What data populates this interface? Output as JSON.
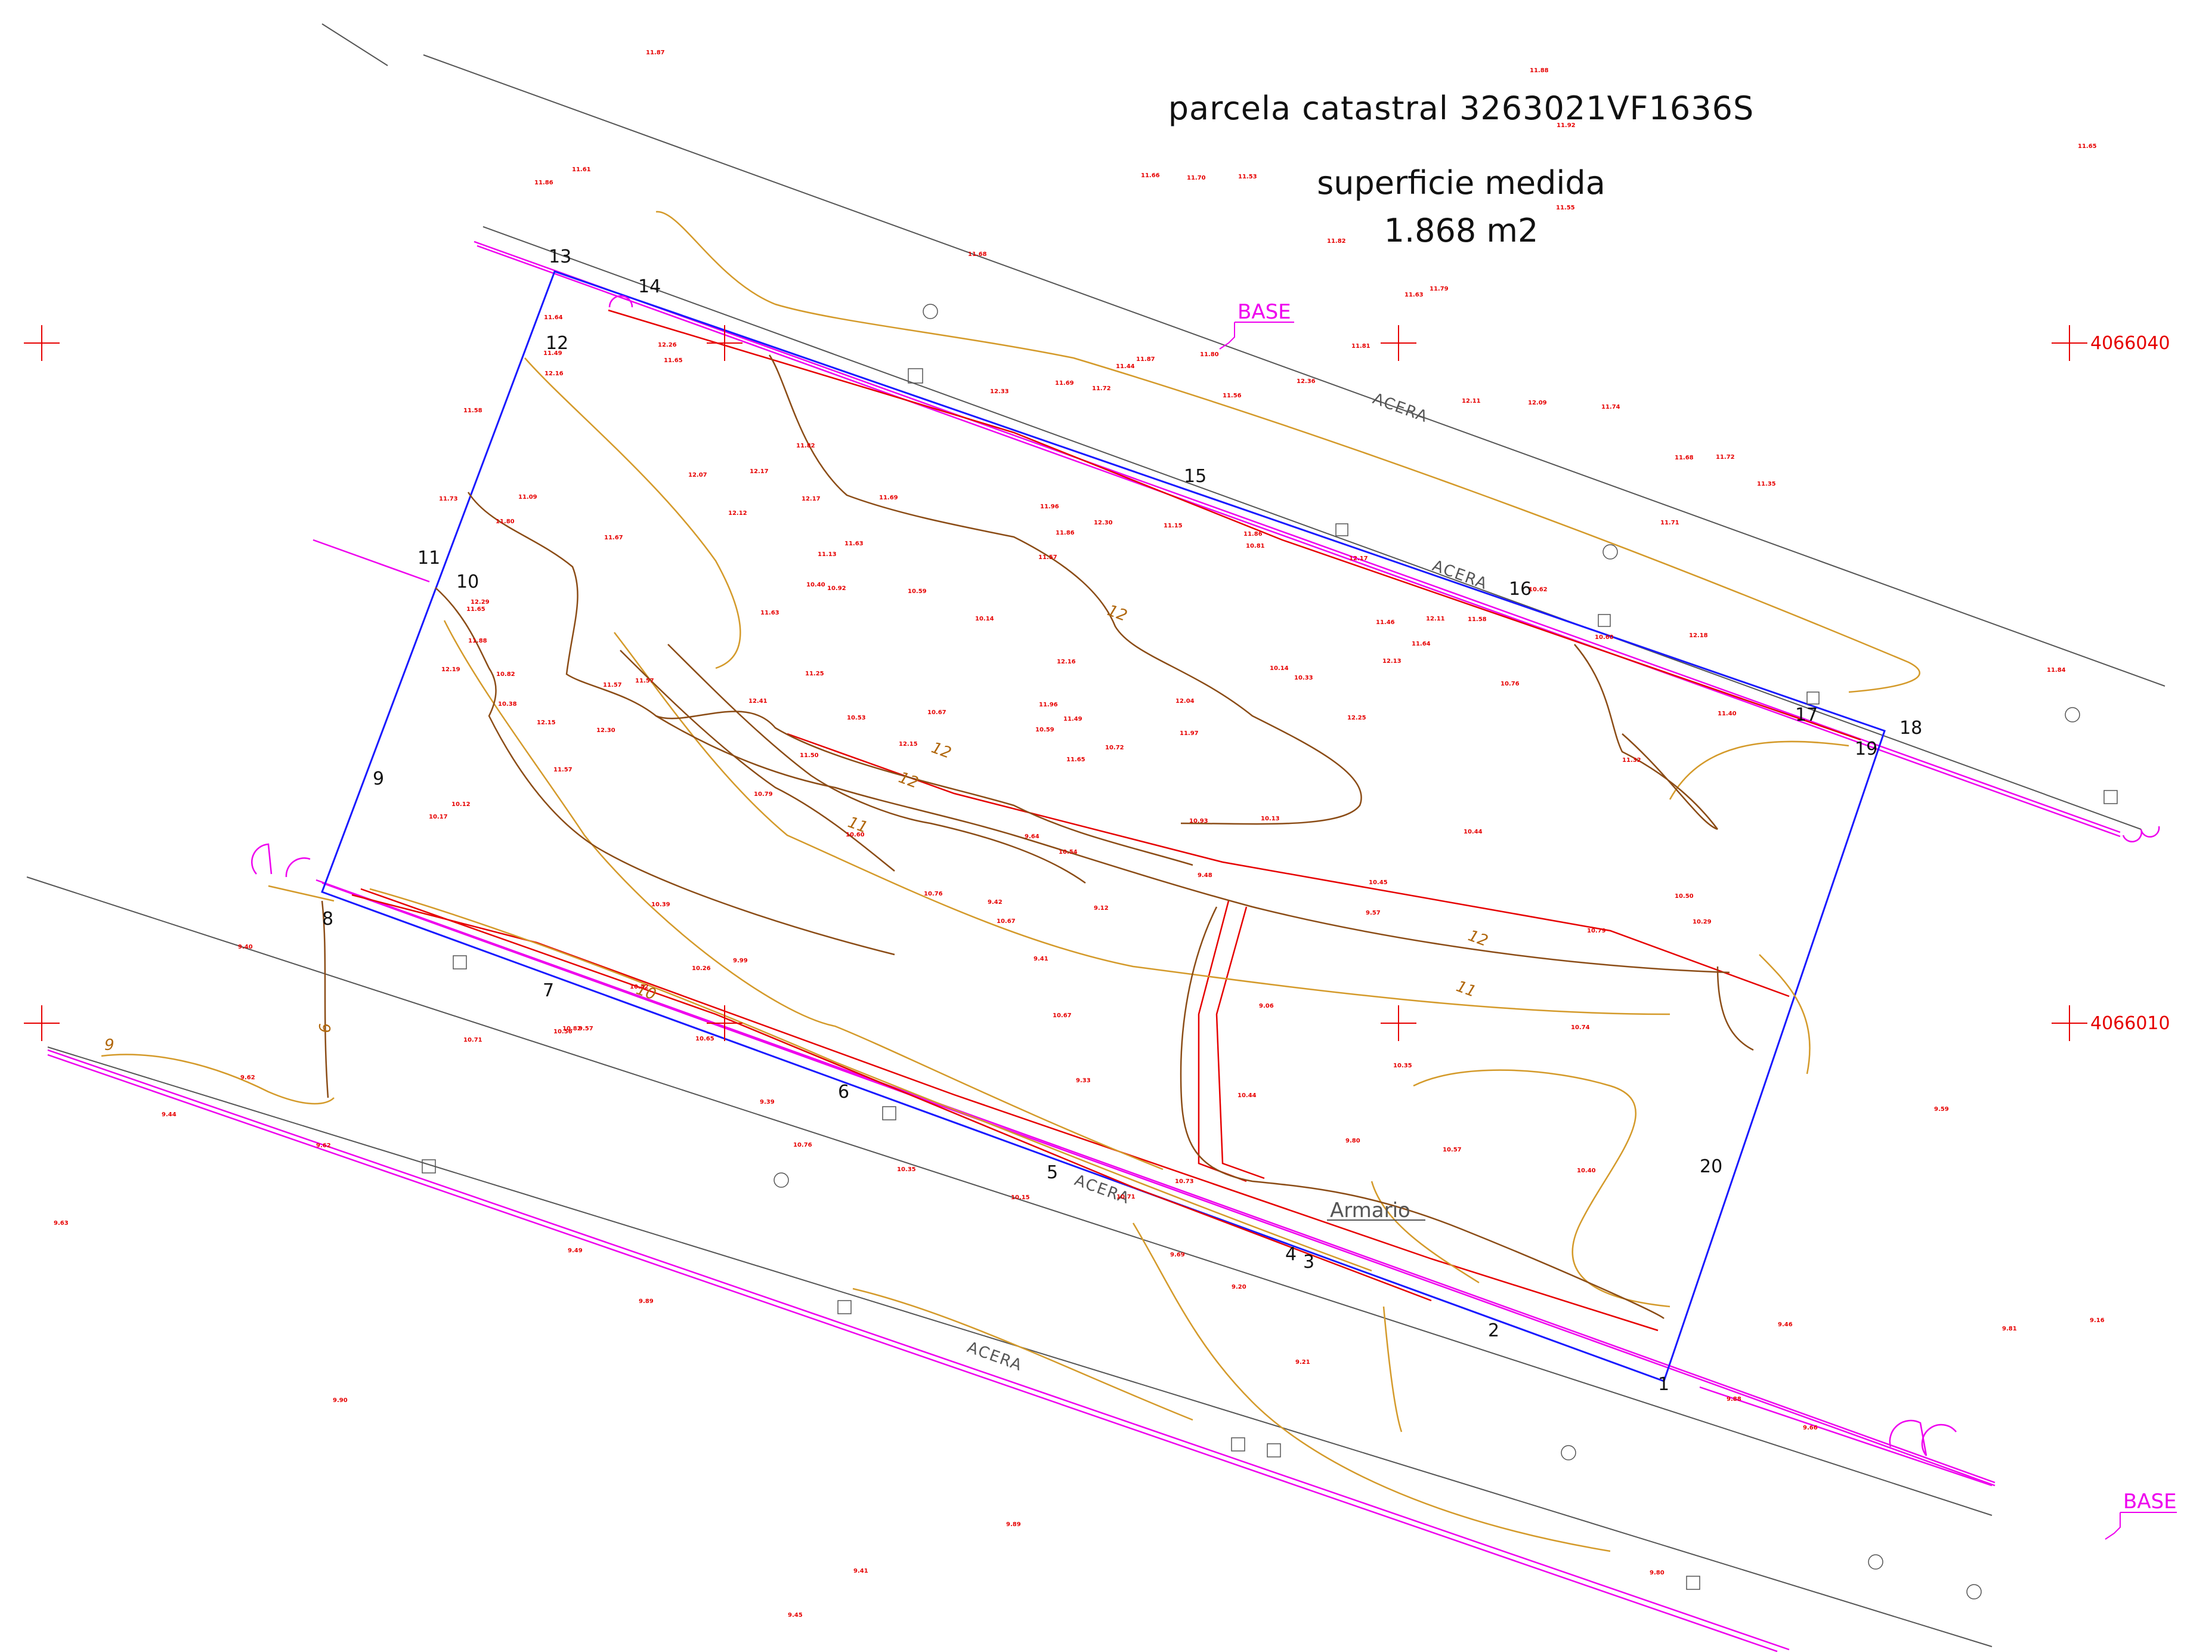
{
  "title": "parcela catastral 3263021VF1636S",
  "area_label": "superficie medida",
  "area_value": "1.868 m2",
  "labels": {
    "base": "BASE",
    "acera": "ACERA",
    "armario": "Armario",
    "coord_north_1": "4066040",
    "coord_north_2": "4066010"
  },
  "vertices": [
    "1",
    "2",
    "3",
    "4",
    "5",
    "6",
    "7",
    "8",
    "9",
    "10",
    "11",
    "12",
    "13",
    "14",
    "15",
    "16",
    "17",
    "18",
    "19",
    "20"
  ],
  "contour_labels": [
    "12",
    "12",
    "12",
    "11",
    "11",
    "12",
    "10",
    "9",
    "9"
  ],
  "spot_heights": [
    "11.56",
    "11.86",
    "11.87",
    "11.65",
    "11.63",
    "11.63",
    "11.88",
    "11.53",
    "11.92",
    "11.81",
    "11.87",
    "11.84",
    "11.64",
    "11.65",
    "11.72",
    "11.55",
    "11.57",
    "11.66",
    "11.82",
    "11.67",
    "11.68",
    "11.88",
    "11.63",
    "11.70",
    "11.79",
    "11.72",
    "11.61",
    "11.69",
    "11.80",
    "11.46",
    "11.35",
    "11.57",
    "11.96",
    "11.86",
    "11.82",
    "12.11",
    "11.25",
    "11.32",
    "11.40",
    "11.58",
    "11.80",
    "11.69",
    "12.12",
    "12.13",
    "11.50",
    "11.73",
    "11.86",
    "11.57",
    "11.49",
    "10.81",
    "11.57",
    "11.68",
    "11.58",
    "11.64",
    "12.25",
    "12.41",
    "11.65",
    "11.49",
    "12.04",
    "11.74",
    "11.44",
    "11.13",
    "11.09",
    "12.17",
    "12.09",
    "12.26",
    "12.36",
    "12.33",
    "12.30",
    "12.19",
    "12.16",
    "12.15",
    "12.11",
    "12.17",
    "12.15",
    "12.16",
    "12.07",
    "12.29",
    "11.96",
    "11.97",
    "11.15",
    "12.30",
    "12.17",
    "12.18",
    "11.65",
    "11.71",
    "10.67",
    "10.57",
    "10.71",
    "10.44",
    "10.14",
    "10.29",
    "10.13",
    "10.35",
    "10.54",
    "10.74",
    "10.12",
    "10.15",
    "10.14",
    "10.33",
    "10.39",
    "10.40",
    "10.50",
    "10.17",
    "10.42",
    "10.65",
    "10.76",
    "10.93",
    "10.76",
    "10.60",
    "10.79",
    "10.82",
    "10.59",
    "10.76",
    "10.92",
    "10.71",
    "10.67",
    "10.60",
    "10.67",
    "10.59",
    "10.56",
    "10.62",
    "10.72",
    "10.53",
    "10.45",
    "10.26",
    "10.40",
    "10.35",
    "10.44",
    "10.38",
    "10.82",
    "10.73",
    "10.79",
    "9.99",
    "9.81",
    "9.88",
    "9.89",
    "9.90",
    "9.16",
    "9.39",
    "9.20",
    "9.62",
    "9.66",
    "9.69",
    "9.80",
    "9.40",
    "9.41",
    "9.80",
    "9.89",
    "9.42",
    "9.59",
    "9.57",
    "9.44",
    "9.45",
    "9.46",
    "9.48",
    "9.41",
    "9.33",
    "9.49",
    "9.06",
    "9.21",
    "9.12",
    "9.63",
    "9.64",
    "9.57",
    "9.62"
  ]
}
